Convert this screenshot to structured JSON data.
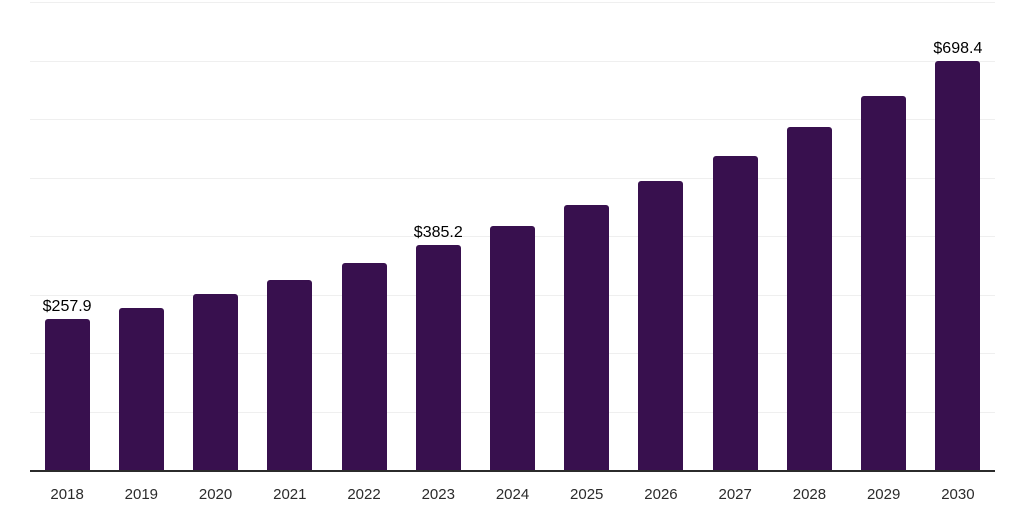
{
  "chart_data": {
    "type": "bar",
    "title": "",
    "xlabel": "",
    "ylabel": "",
    "categories": [
      "2018",
      "2019",
      "2020",
      "2021",
      "2022",
      "2023",
      "2024",
      "2025",
      "2026",
      "2027",
      "2028",
      "2029",
      "2030"
    ],
    "values": [
      257.9,
      276.4,
      300.3,
      325.4,
      353.6,
      385.2,
      417.5,
      452.7,
      494.2,
      536.9,
      586.4,
      639.8,
      698.4
    ],
    "data_labels": {
      "2018": "$257.9",
      "2023": "$385.2",
      "2030": "$698.4"
    },
    "ylim": [
      0,
      800
    ],
    "grid_step": 100,
    "grid": "horizontal-only",
    "legend": "none",
    "colors": {
      "bar": "#38104e",
      "gridline": "#efefef",
      "axis": "#2b2b2b",
      "data_label": "#000000",
      "tick_label": "#2b2b2b",
      "background": "#ffffff"
    }
  }
}
